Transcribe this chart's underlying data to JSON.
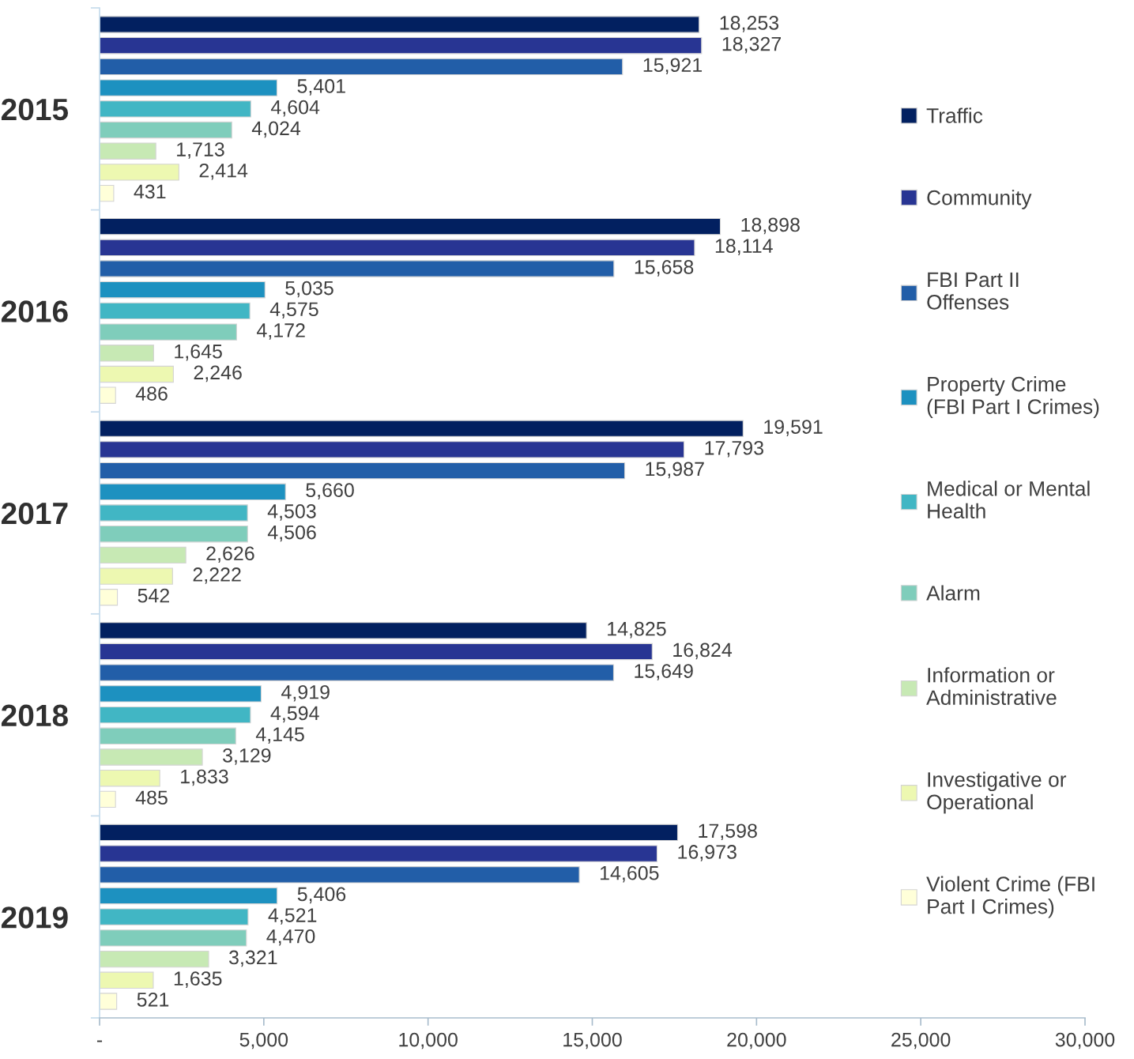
{
  "chart_data": {
    "type": "bar",
    "orientation": "horizontal",
    "categories": [
      "2015",
      "2016",
      "2017",
      "2018",
      "2019"
    ],
    "series": [
      {
        "name": "Traffic",
        "color": "#022060",
        "values": [
          18253,
          18898,
          19591,
          14825,
          17598
        ],
        "value_labels": [
          "18,253",
          "18,898",
          "19,591",
          "14,825",
          "17,598"
        ]
      },
      {
        "name": "Community",
        "color": "#283593",
        "values": [
          18327,
          18114,
          17793,
          16824,
          16973
        ],
        "value_labels": [
          "18,327",
          "18,114",
          "17,793",
          "16,824",
          "16,973"
        ]
      },
      {
        "name": "FBI Part II\nOffenses",
        "color": "#225ea8",
        "values": [
          15921,
          15658,
          15987,
          15649,
          14605
        ],
        "value_labels": [
          "15,921",
          "15,658",
          "15,987",
          "15,649",
          "14,605"
        ]
      },
      {
        "name": "Property Crime\n(FBI Part I Crimes)",
        "color": "#1d91c0",
        "values": [
          5401,
          5035,
          5660,
          4919,
          5406
        ],
        "value_labels": [
          "5,401",
          "5,035",
          "5,660",
          "4,919",
          "5,406"
        ]
      },
      {
        "name": "Medical or Mental\nHealth",
        "color": "#41b6c4",
        "values": [
          4604,
          4575,
          4503,
          4594,
          4521
        ],
        "value_labels": [
          "4,604",
          "4,575",
          "4,503",
          "4,594",
          "4,521"
        ]
      },
      {
        "name": "Alarm",
        "color": "#7fcdbb",
        "values": [
          4024,
          4172,
          4506,
          4145,
          4470
        ],
        "value_labels": [
          "4,024",
          "4,172",
          "4,506",
          "4,145",
          "4,470"
        ]
      },
      {
        "name": "Information or\nAdministrative",
        "color": "#c7e9b4",
        "values": [
          1713,
          1645,
          2626,
          3129,
          3321
        ],
        "value_labels": [
          "1,713",
          "1,645",
          "2,626",
          "3,129",
          "3,321"
        ]
      },
      {
        "name": "Investigative or\nOperational",
        "color": "#edf8b1",
        "values": [
          2414,
          2246,
          2222,
          1833,
          1635
        ],
        "value_labels": [
          "2,414",
          "2,246",
          "2,222",
          "1,833",
          "1,635"
        ]
      },
      {
        "name": "Violent Crime (FBI\nPart I Crimes)",
        "color": "#ffffd9",
        "values": [
          431,
          486,
          542,
          485,
          521
        ],
        "value_labels": [
          "431",
          "486",
          "542",
          "485",
          "521"
        ]
      }
    ],
    "xlim": [
      0,
      30000
    ],
    "xticks": [
      {
        "value": 0,
        "label": "-"
      },
      {
        "value": 5000,
        "label": "5,000"
      },
      {
        "value": 10000,
        "label": "10,000"
      },
      {
        "value": 15000,
        "label": "15,000"
      },
      {
        "value": 20000,
        "label": "20,000"
      },
      {
        "value": 25000,
        "label": "25,000"
      },
      {
        "value": 30000,
        "label": "30,000"
      }
    ],
    "legend": "right"
  }
}
